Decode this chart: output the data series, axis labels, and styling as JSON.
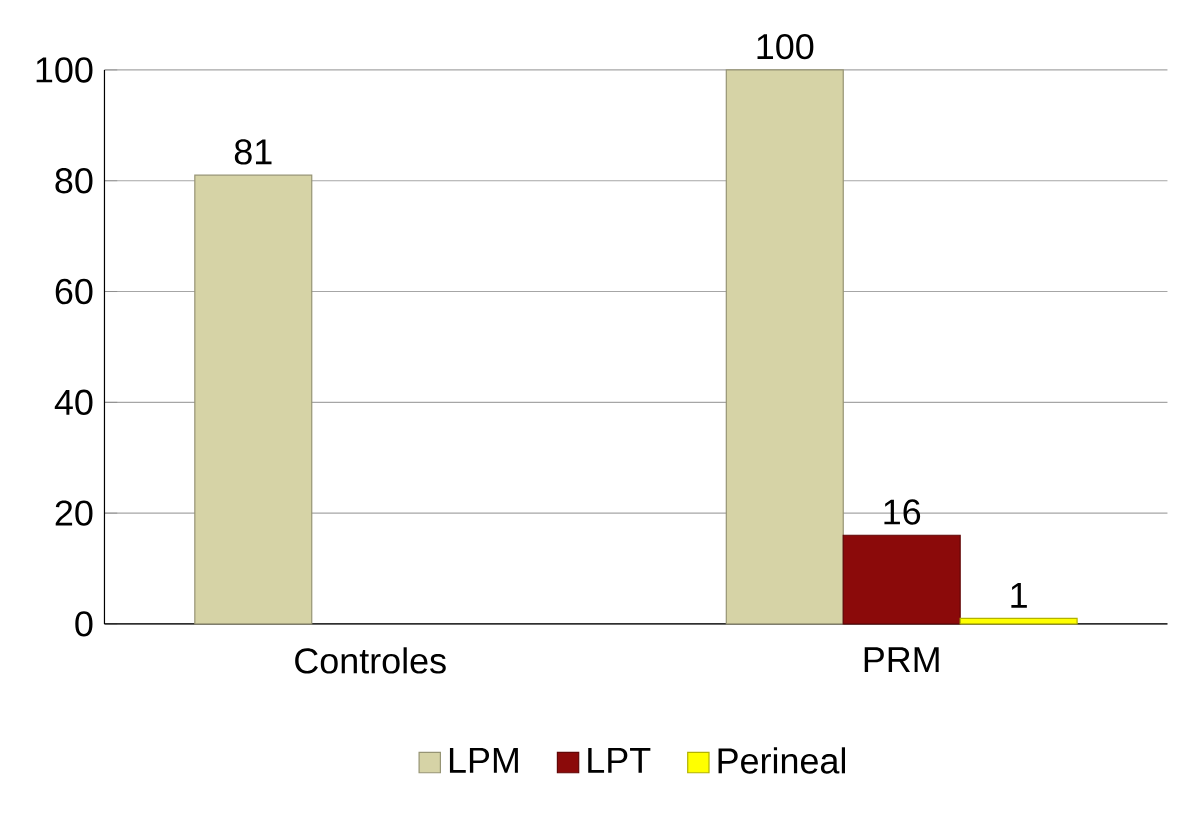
{
  "chart_data": {
    "type": "bar",
    "categories": [
      "Controles",
      "PRM"
    ],
    "series": [
      {
        "name": "LPM",
        "color": "#d6d3a6",
        "values": [
          81,
          100
        ]
      },
      {
        "name": "LPT",
        "color": "#8b0a0a",
        "values": [
          null,
          16
        ]
      },
      {
        "name": "Perineal",
        "color": "#ffff00",
        "values": [
          null,
          1
        ]
      }
    ],
    "ylim": [
      0,
      100
    ],
    "yticks": [
      0,
      20,
      40,
      60,
      80,
      100
    ],
    "grid": "y",
    "legend": "bottom",
    "data_labels": true
  }
}
